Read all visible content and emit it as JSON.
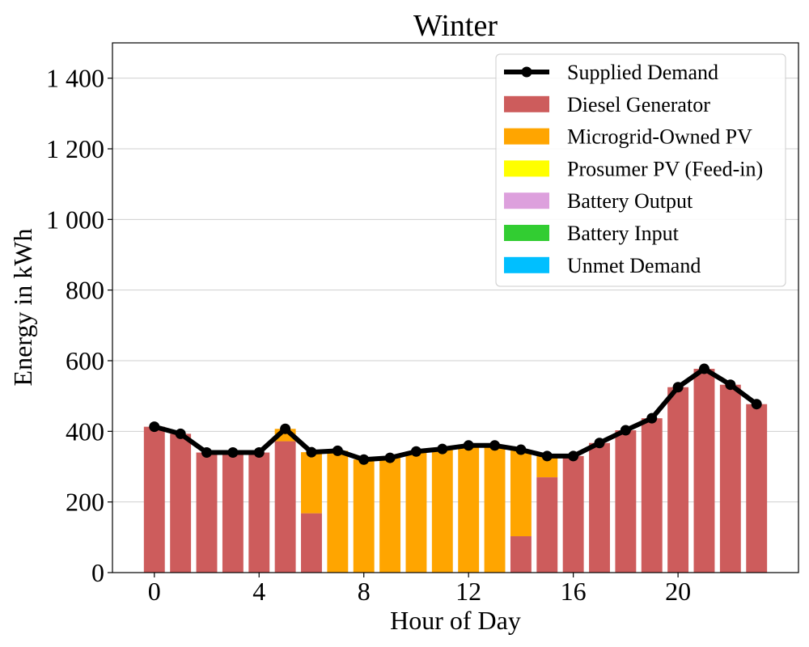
{
  "chart_data": {
    "type": "bar",
    "title": "Winter",
    "xlabel": "Hour of Day",
    "ylabel": "Energy in kWh",
    "xlim": [
      -1.6,
      24.6
    ],
    "ylim": [
      0,
      1500
    ],
    "x_ticks": [
      0,
      4,
      8,
      12,
      16,
      20
    ],
    "y_ticks": [
      0,
      200,
      400,
      600,
      800,
      1000,
      1200,
      1400
    ],
    "y_tick_labels": [
      "0",
      "200",
      "400",
      "600",
      "800",
      "1 000",
      "1 200",
      "1 400"
    ],
    "grid": "horizontal",
    "legend_position": "top-right",
    "x": [
      0,
      1,
      2,
      3,
      4,
      5,
      6,
      7,
      8,
      9,
      10,
      11,
      12,
      13,
      14,
      15,
      16,
      17,
      18,
      19,
      20,
      21,
      22,
      23
    ],
    "stacked_series": [
      {
        "name": "Diesel Generator",
        "color": "#cd5c5c",
        "values": [
          413,
          393,
          340,
          340,
          340,
          372,
          168,
          0,
          0,
          0,
          0,
          0,
          0,
          0,
          103,
          270,
          330,
          367,
          403,
          437,
          525,
          577,
          532,
          477
        ]
      },
      {
        "name": "Microgrid-Owned PV",
        "color": "#ffa500",
        "values": [
          0,
          0,
          0,
          0,
          0,
          35,
          173,
          345,
          320,
          325,
          343,
          350,
          360,
          360,
          245,
          60,
          0,
          0,
          0,
          0,
          0,
          0,
          0,
          0
        ]
      },
      {
        "name": "Prosumer PV (Feed-in)",
        "color": "#ffff00",
        "values": [
          0,
          0,
          0,
          0,
          0,
          0,
          0,
          0,
          0,
          0,
          0,
          0,
          0,
          0,
          0,
          0,
          0,
          0,
          0,
          0,
          0,
          0,
          0,
          0
        ]
      },
      {
        "name": "Battery Output",
        "color": "#dda0dd",
        "values": [
          0,
          0,
          0,
          0,
          0,
          0,
          0,
          0,
          0,
          0,
          0,
          0,
          0,
          0,
          0,
          0,
          0,
          0,
          0,
          0,
          0,
          0,
          0,
          0
        ]
      },
      {
        "name": "Battery Input",
        "color": "#32cd32",
        "values": [
          0,
          0,
          0,
          0,
          0,
          0,
          0,
          0,
          0,
          0,
          0,
          0,
          0,
          0,
          0,
          0,
          0,
          0,
          0,
          0,
          0,
          0,
          0,
          0
        ]
      },
      {
        "name": "Unmet Demand",
        "color": "#00bfff",
        "values": [
          0,
          0,
          0,
          0,
          0,
          0,
          0,
          0,
          0,
          0,
          0,
          0,
          0,
          0,
          0,
          0,
          0,
          0,
          0,
          0,
          0,
          0,
          0,
          0
        ]
      }
    ],
    "line_series": {
      "name": "Supplied Demand",
      "color": "#000000",
      "values": [
        413,
        393,
        340,
        340,
        340,
        407,
        341,
        345,
        320,
        325,
        343,
        350,
        360,
        360,
        348,
        330,
        330,
        367,
        403,
        437,
        525,
        577,
        532,
        477
      ]
    }
  }
}
